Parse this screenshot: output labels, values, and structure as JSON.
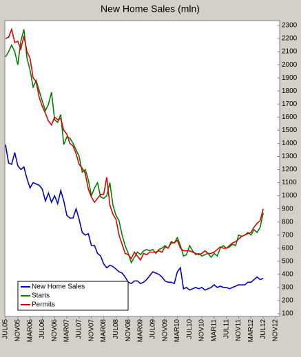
{
  "chart_data": {
    "type": "line",
    "title": "New Home Sales (mln)",
    "categories": [
      "JUL05",
      null,
      null,
      null,
      "NOV05",
      null,
      null,
      null,
      "MAR06",
      null,
      null,
      null,
      "JUL06",
      null,
      null,
      null,
      "NOV06",
      null,
      null,
      null,
      "MAR07",
      null,
      null,
      null,
      "JUL07",
      null,
      null,
      null,
      "NOV07",
      null,
      null,
      null,
      "MAR08",
      null,
      null,
      null,
      "JUL08",
      null,
      null,
      null,
      "NOV08",
      null,
      null,
      null,
      "MAR09",
      null,
      null,
      null,
      "JUL09",
      null,
      null,
      null,
      "NOV09",
      null,
      null,
      null,
      "MAR10",
      null,
      null,
      null,
      "JUL10",
      null,
      null,
      null,
      "NOV10",
      null,
      null,
      null,
      "MAR11",
      null,
      null,
      null,
      "JUL11",
      null,
      null,
      null,
      "NOV11",
      null,
      null,
      null,
      "MAR12",
      null,
      null,
      null,
      "JUL12",
      null,
      null,
      null,
      "NOV12"
    ],
    "series": [
      {
        "name": "New Home Sales",
        "color": "#0000c8",
        "values": [
          1389,
          1250,
          1240,
          1330,
          1230,
          1200,
          1220,
          1130,
          1060,
          1100,
          1090,
          1080,
          1050,
          960,
          1020,
          950,
          1000,
          940,
          1040,
          960,
          850,
          830,
          830,
          900,
          820,
          720,
          700,
          710,
          620,
          620,
          560,
          540,
          480,
          450,
          470,
          460,
          440,
          420,
          410,
          380,
          340,
          330,
          350,
          350,
          330,
          340,
          360,
          390,
          420,
          410,
          400,
          380,
          350,
          340,
          340,
          330,
          420,
          450,
          290,
          300,
          280,
          290,
          300,
          290,
          300,
          280,
          290,
          300,
          320,
          300,
          310,
          300,
          300,
          290,
          300,
          310,
          320,
          320,
          320,
          340,
          340,
          360,
          380,
          360,
          370,
          null,
          null,
          null,
          null
        ]
      },
      {
        "name": "Starts",
        "color": "#008000",
        "values": [
          2060,
          2100,
          2150,
          2100,
          2000,
          2180,
          2270,
          2050,
          1960,
          1830,
          1880,
          1800,
          1720,
          1650,
          1700,
          1790,
          1580,
          1560,
          1620,
          1390,
          1450,
          1440,
          1400,
          1350,
          1300,
          1180,
          1200,
          1120,
          1000,
          1060,
          1100,
          990,
          980,
          1000,
          1100,
          930,
          850,
          810,
          700,
          620,
          560,
          490,
          530,
          570,
          550,
          580,
          590,
          580,
          590,
          560,
          590,
          600,
          620,
          600,
          650,
          640,
          680,
          620,
          540,
          550,
          620,
          580,
          550,
          560,
          540,
          550,
          560,
          530,
          560,
          540,
          600,
          620,
          600,
          610,
          630,
          620,
          700,
          690,
          700,
          720,
          700,
          740,
          720,
          760,
          870,
          null,
          null,
          null,
          null
        ]
      },
      {
        "name": "Permits",
        "color": "#e00000",
        "values": [
          2200,
          2210,
          2270,
          2170,
          2180,
          2120,
          2220,
          2100,
          2050,
          1900,
          1870,
          1750,
          1680,
          1630,
          1570,
          1540,
          1600,
          1580,
          1590,
          1500,
          1470,
          1400,
          1380,
          1320,
          1240,
          1210,
          1170,
          1050,
          990,
          950,
          980,
          1010,
          1010,
          1140,
          930,
          860,
          820,
          700,
          630,
          560,
          550,
          520,
          570,
          540,
          510,
          560,
          550,
          570,
          570,
          570,
          580,
          570,
          610,
          600,
          640,
          640,
          660,
          600,
          580,
          580,
          580,
          570,
          560,
          550,
          560,
          580,
          560,
          560,
          570,
          590,
          610,
          600,
          600,
          620,
          640,
          650,
          670,
          690,
          700,
          710,
          720,
          760,
          790,
          810,
          900,
          null,
          null,
          null,
          null
        ]
      }
    ],
    "ylim": [
      100,
      2300
    ],
    "yticks": [
      100,
      200,
      300,
      400,
      500,
      600,
      700,
      800,
      900,
      1000,
      1100,
      1200,
      1300,
      1400,
      1500,
      1600,
      1700,
      1800,
      1900,
      2000,
      2100,
      2200,
      2300
    ],
    "grid": false,
    "legend": "lower-left"
  }
}
